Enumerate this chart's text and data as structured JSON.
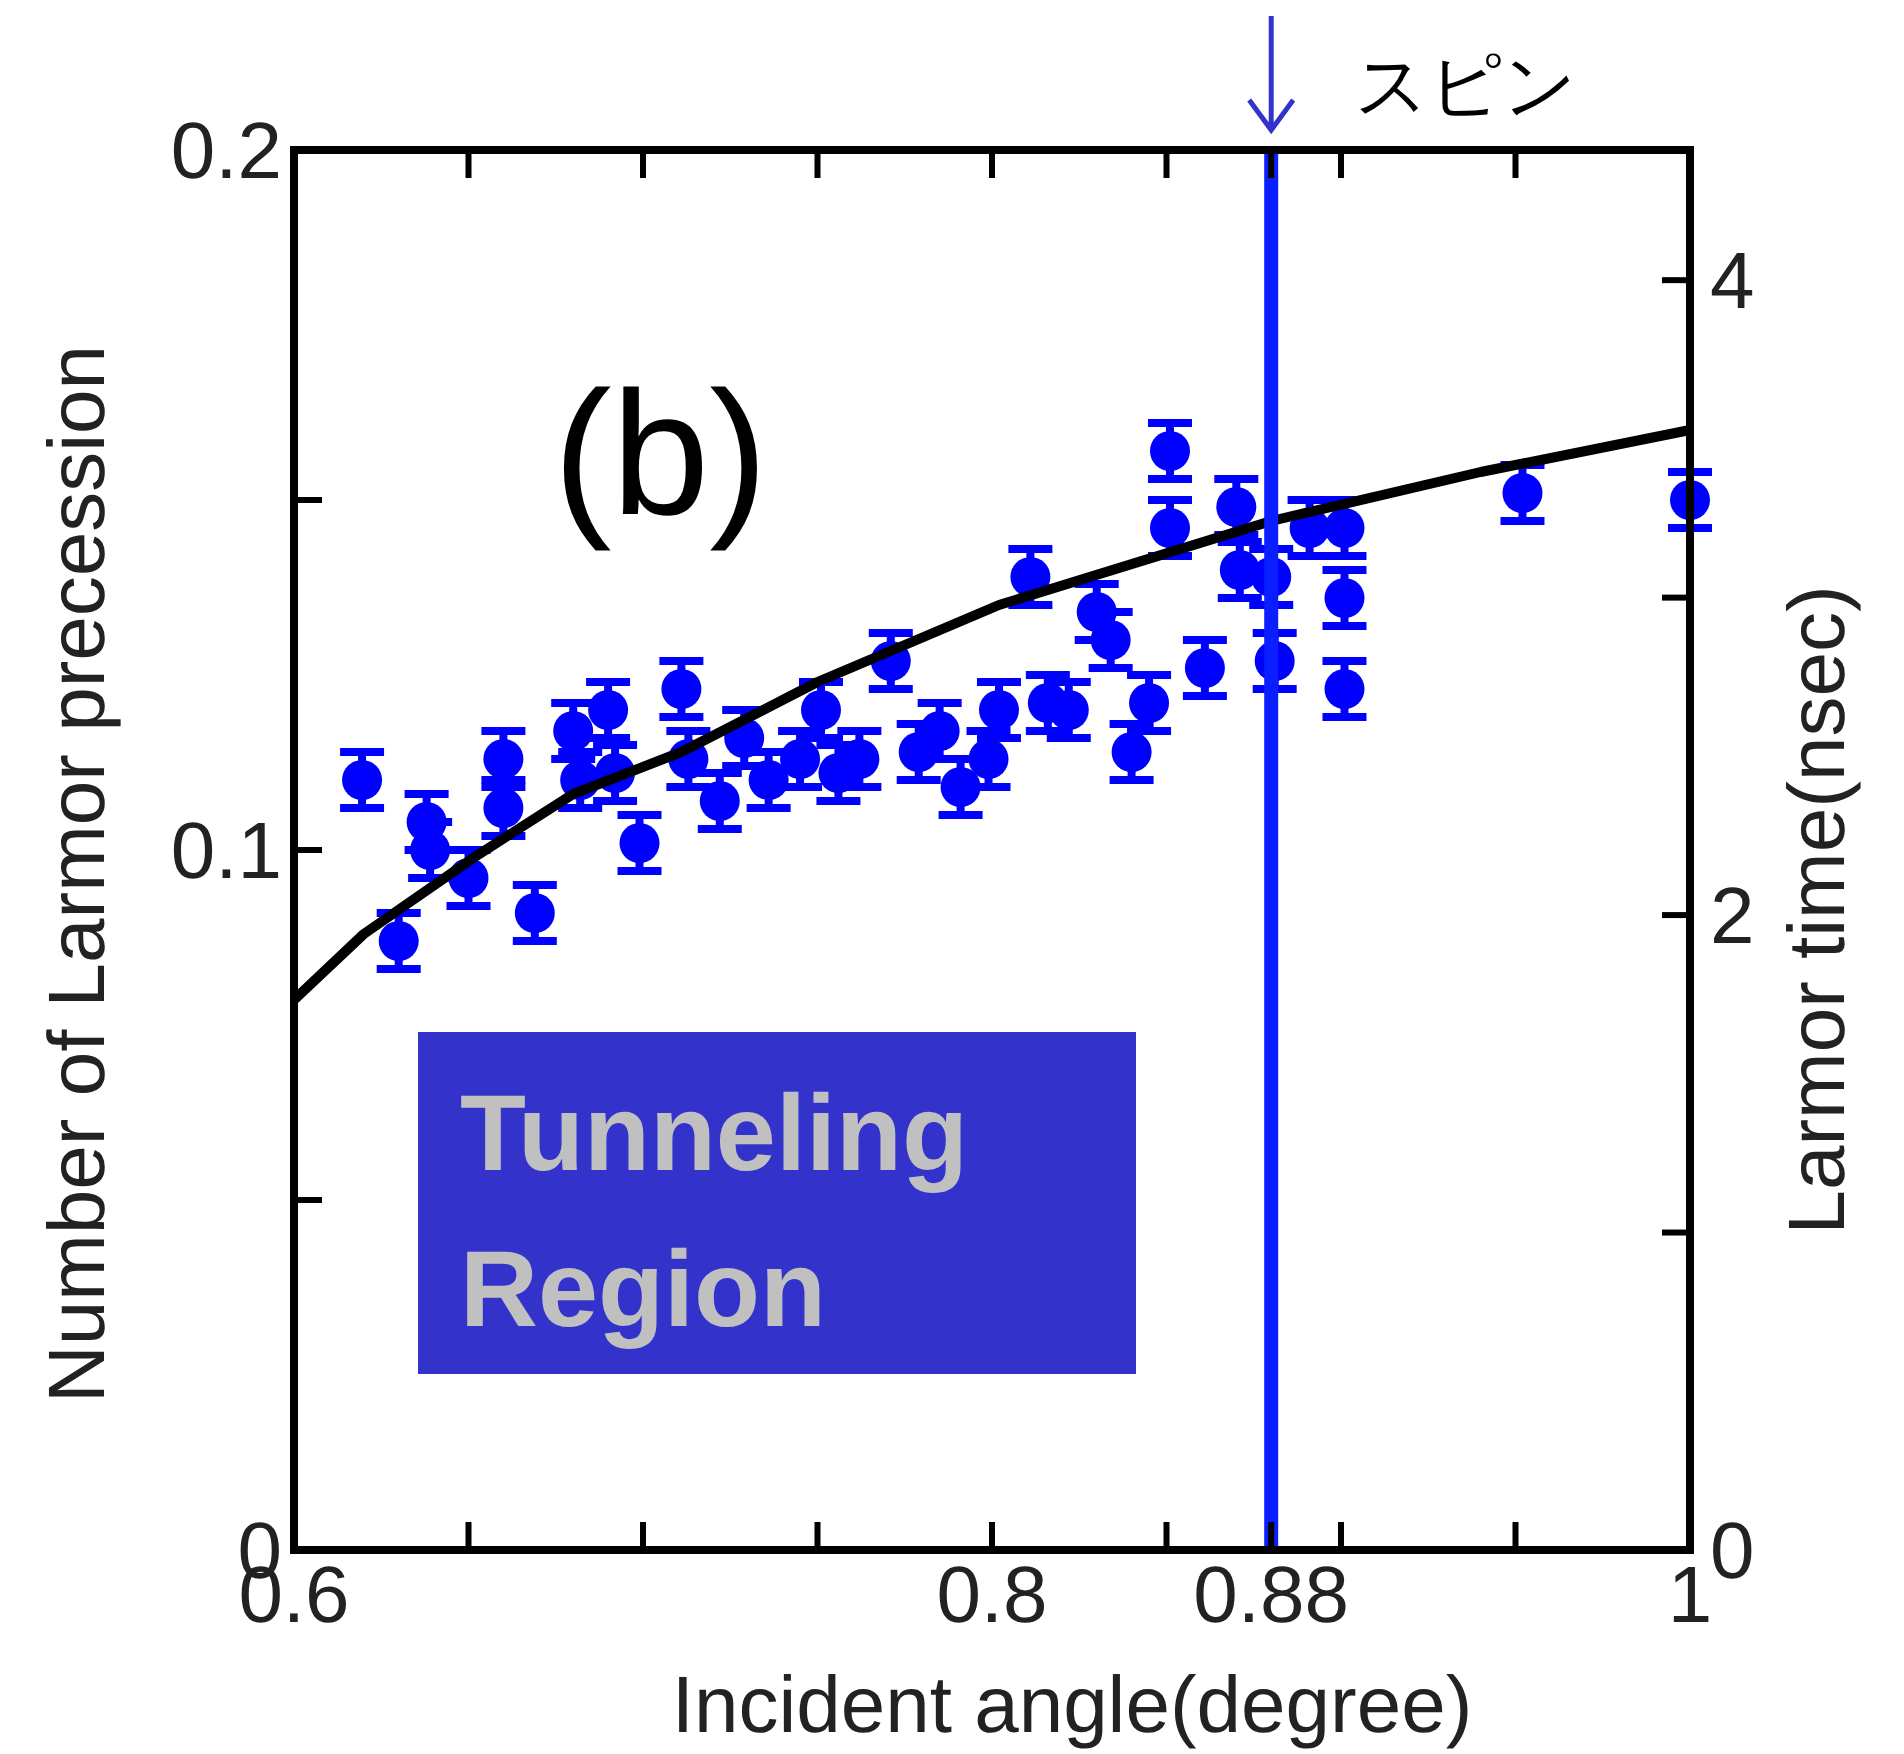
{
  "chart_data": {
    "type": "scatter",
    "xlabel": "Incident angle(degree)",
    "ylabel": "Number of Larmor precession",
    "y2label": "Larmor time(nsec)",
    "annotations": [
      "(b)",
      "Tunneling Region"
    ],
    "xlim": [
      0.6,
      1.0
    ],
    "ylim": [
      0,
      0.2
    ],
    "y2lim": [
      0,
      4.41
    ],
    "xticks": [
      0.6,
      {
        "value": 0.65,
        "label": null
      },
      {
        "value": 0.7,
        "label": null
      },
      {
        "value": 0.75,
        "label": null
      },
      0.8,
      {
        "value": 0.85,
        "label": null
      },
      0.88,
      {
        "value": 0.9,
        "label": null
      },
      {
        "value": 0.95,
        "label": null
      },
      {
        "value": 1.0,
        "label": "1"
      }
    ],
    "yticks": [
      {
        "value": 0,
        "label": "0"
      },
      {
        "value": 0.05,
        "label": null
      },
      0.1,
      {
        "value": 0.15,
        "label": null
      },
      0.2
    ],
    "y2ticks": [
      0,
      {
        "value": 1,
        "label": null
      },
      2,
      {
        "value": 3,
        "label": null
      },
      4
    ],
    "ref_lines": [
      {
        "axis": "x",
        "value": 0.88,
        "label": "スピン",
        "color": "#0a1eff"
      }
    ],
    "series": [
      {
        "type": "scatter",
        "color": "#0000ff",
        "marker": "circle",
        "x": [
          0.6195,
          0.63,
          0.638,
          0.639,
          0.65,
          0.66,
          0.66,
          0.669,
          0.68,
          0.682,
          0.69,
          0.692,
          0.699,
          0.711,
          0.713,
          0.722,
          0.729,
          0.736,
          0.745,
          0.751,
          0.756,
          0.762,
          0.771,
          0.779,
          0.785,
          0.791,
          0.799,
          0.802,
          0.811,
          0.816,
          0.822,
          0.83,
          0.834,
          0.84,
          0.845,
          0.851,
          0.851,
          0.861,
          0.87,
          0.871,
          0.88,
          0.881,
          0.891,
          0.901,
          0.901,
          0.901,
          0.952,
          1.0
        ],
        "values": [
          0.11,
          0.087,
          0.104,
          0.1,
          0.096,
          0.113,
          0.106,
          0.091,
          0.117,
          0.11,
          0.12,
          0.111,
          0.101,
          0.123,
          0.113,
          0.107,
          0.116,
          0.11,
          0.113,
          0.12,
          0.111,
          0.113,
          0.127,
          0.114,
          0.117,
          0.109,
          0.113,
          0.12,
          0.139,
          0.121,
          0.12,
          0.134,
          0.13,
          0.114,
          0.121,
          0.157,
          0.146,
          0.126,
          0.149,
          0.14,
          0.139,
          0.127,
          0.146,
          0.146,
          0.136,
          0.123,
          0.151,
          0.15
        ],
        "errors": [
          0.004,
          0.004,
          0.004,
          0.004,
          0.004,
          0.004,
          0.004,
          0.004,
          0.004,
          0.004,
          0.004,
          0.004,
          0.004,
          0.004,
          0.004,
          0.004,
          0.004,
          0.004,
          0.004,
          0.004,
          0.004,
          0.004,
          0.004,
          0.004,
          0.004,
          0.004,
          0.004,
          0.004,
          0.004,
          0.004,
          0.004,
          0.004,
          0.004,
          0.004,
          0.004,
          0.004,
          0.004,
          0.004,
          0.004,
          0.004,
          0.004,
          0.004,
          0.004,
          0.004,
          0.004,
          0.004,
          0.004,
          0.004
        ]
      },
      {
        "type": "line",
        "color": "#000000",
        "marker": "none",
        "line_style": "solid",
        "x": [
          0.6,
          0.62,
          0.653,
          0.68,
          0.711,
          0.75,
          0.802,
          0.88,
          0.94,
          1.0
        ],
        "values": [
          0.0786,
          0.088,
          0.0994,
          0.108,
          0.114,
          0.124,
          0.135,
          0.147,
          0.154,
          0.16
        ]
      }
    ]
  }
}
